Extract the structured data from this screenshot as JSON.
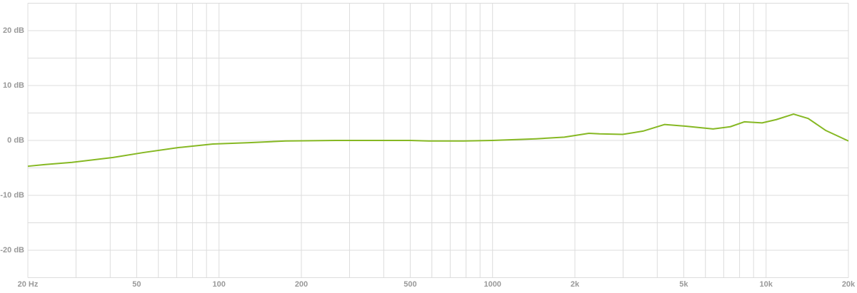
{
  "chart_data": {
    "type": "line",
    "log_x": true,
    "grid": true,
    "x": [
      20,
      23,
      29,
      41,
      53,
      71,
      95,
      129,
      175,
      267,
      500,
      585,
      782,
      1000,
      1440,
      1830,
      2250,
      2460,
      2990,
      3550,
      4250,
      5080,
      6400,
      7400,
      8340,
      9670,
      10900,
      12600,
      14250,
      16550,
      20000
    ],
    "series": [
      {
        "color": "#86b823",
        "values": [
          -4.7,
          -4.4,
          -4.0,
          -3.1,
          -2.2,
          -1.3,
          -0.65,
          -0.4,
          -0.1,
          0,
          0,
          -0.1,
          -0.1,
          0,
          0.3,
          0.6,
          1.3,
          1.2,
          1.1,
          1.7,
          2.9,
          2.6,
          2.1,
          2.5,
          3.4,
          3.2,
          3.8,
          4.8,
          4.0,
          1.8,
          -0.1
        ]
      }
    ],
    "xlim": [
      20,
      20000
    ],
    "xticks": [
      {
        "value": 20,
        "label": "20 Hz"
      },
      50,
      100,
      200,
      500,
      1000,
      {
        "value": 2000,
        "label": "2k"
      },
      {
        "value": 5000,
        "label": "5k"
      },
      {
        "value": 10000,
        "label": "10k"
      },
      {
        "value": 20000,
        "label": "20k"
      }
    ],
    "xminor": [
      30,
      40,
      60,
      70,
      80,
      90,
      300,
      400,
      600,
      700,
      800,
      900,
      3000,
      4000,
      6000,
      7000,
      8000,
      9000
    ],
    "ylim": [
      -25,
      25
    ],
    "yticks": [
      {
        "value": 20,
        "label": "20 dB"
      },
      {
        "value": 10,
        "label": "10 dB"
      },
      {
        "value": 0,
        "label": "0 dB"
      },
      {
        "value": -10,
        "label": "-10 dB"
      },
      {
        "value": -20,
        "label": "-20 dB"
      }
    ],
    "yminor": [
      -25,
      -15,
      -5,
      5,
      15,
      25
    ]
  }
}
